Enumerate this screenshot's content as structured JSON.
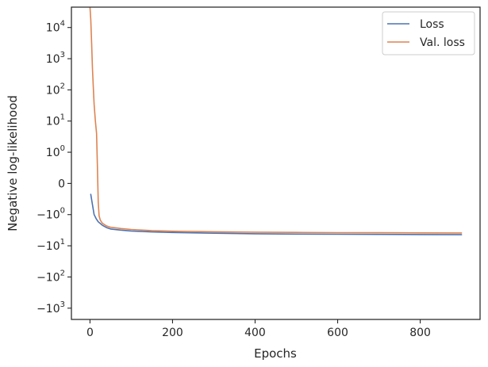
{
  "chart_data": {
    "type": "line",
    "xlabel": "Epochs",
    "ylabel": "Negative log-likelihood",
    "xlim": [
      -45,
      945
    ],
    "yscale": "symlog",
    "linthresh": 1,
    "ylim": [
      -2300,
      45000
    ],
    "x_ticks": [
      {
        "value": 0,
        "label": "0"
      },
      {
        "value": 200,
        "label": "200"
      },
      {
        "value": 400,
        "label": "400"
      },
      {
        "value": 600,
        "label": "600"
      },
      {
        "value": 800,
        "label": "800"
      }
    ],
    "y_ticks": [
      {
        "value": 10000,
        "base": "10",
        "exp": "4"
      },
      {
        "value": 1000,
        "base": "10",
        "exp": "3"
      },
      {
        "value": 100,
        "base": "10",
        "exp": "2"
      },
      {
        "value": 10,
        "base": "10",
        "exp": "1"
      },
      {
        "value": 1,
        "base": "10",
        "exp": "0"
      },
      {
        "value": 0,
        "base": "0",
        "exp": ""
      },
      {
        "value": -1,
        "base": "−10",
        "exp": "0"
      },
      {
        "value": -10,
        "base": "−10",
        "exp": "1"
      },
      {
        "value": -100,
        "base": "−10",
        "exp": "2"
      },
      {
        "value": -1000,
        "base": "−10",
        "exp": "3"
      }
    ],
    "legend": {
      "position": "top-right",
      "frame": true
    },
    "grid": false,
    "series": [
      {
        "name": "Loss",
        "color": "#4c72b0",
        "x": [
          2,
          5,
          10,
          15,
          20,
          30,
          40,
          50,
          75,
          100,
          150,
          200,
          300,
          400,
          500,
          600,
          700,
          800,
          900
        ],
        "y": [
          -0.35,
          -0.6,
          -1.0,
          -1.35,
          -1.7,
          -2.2,
          -2.6,
          -2.9,
          -3.15,
          -3.35,
          -3.6,
          -3.75,
          -3.95,
          -4.1,
          -4.2,
          -4.25,
          -4.3,
          -4.35,
          -4.4
        ]
      },
      {
        "name": "Val. loss",
        "color": "#dd8452",
        "x": [
          0,
          2,
          4,
          6,
          8,
          10,
          13,
          16,
          18,
          20,
          22,
          25,
          30,
          40,
          50,
          75,
          100,
          150,
          200,
          300,
          400,
          500,
          600,
          700,
          800,
          900
        ],
        "y": [
          45000,
          18000,
          3000,
          500,
          120,
          35,
          10,
          4,
          0.5,
          -0.6,
          -1.1,
          -1.5,
          -1.9,
          -2.3,
          -2.55,
          -2.8,
          -3.0,
          -3.25,
          -3.4,
          -3.55,
          -3.65,
          -3.72,
          -3.78,
          -3.82,
          -3.85,
          -3.88
        ]
      }
    ]
  }
}
